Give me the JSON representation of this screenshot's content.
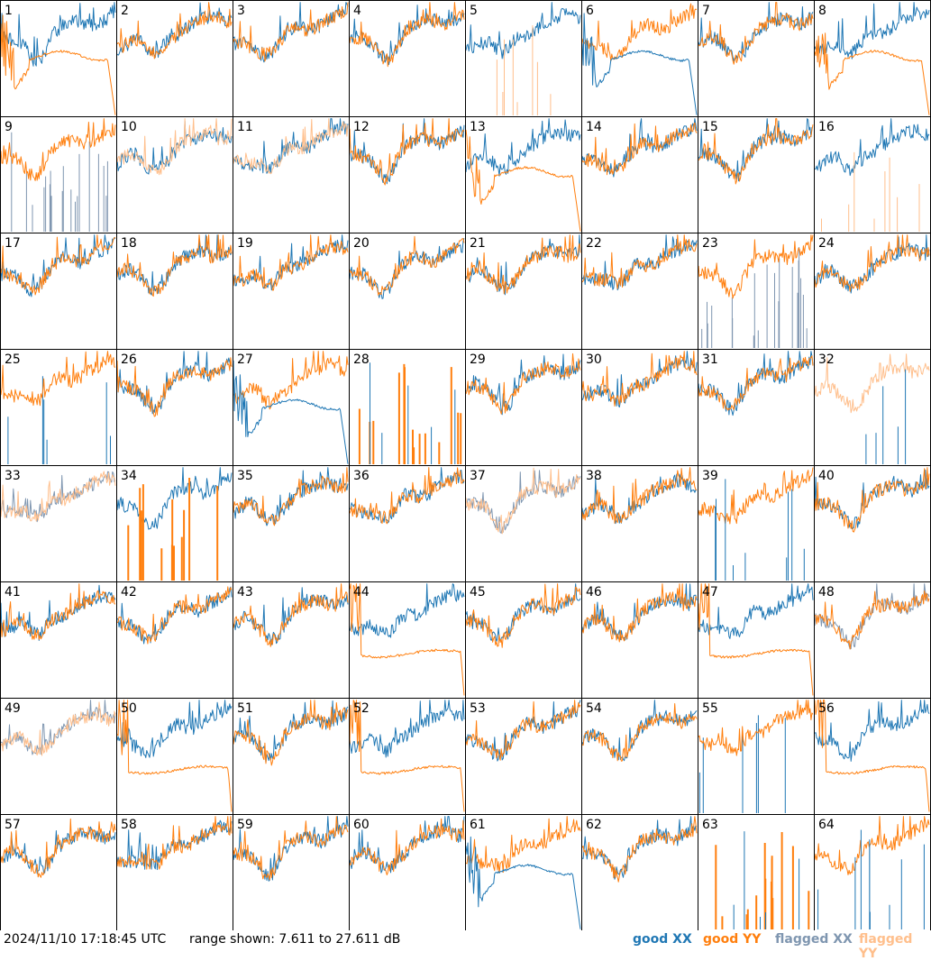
{
  "chart_data": {
    "type": "line",
    "layout": "8x8 grid of small multiples",
    "panels": [
      "1",
      "2",
      "3",
      "4",
      "5",
      "6",
      "7",
      "8",
      "9",
      "10",
      "11",
      "12",
      "13",
      "14",
      "15",
      "16",
      "17",
      "18",
      "19",
      "20",
      "21",
      "22",
      "23",
      "24",
      "25",
      "26",
      "27",
      "28",
      "29",
      "30",
      "31",
      "32",
      "33",
      "34",
      "35",
      "36",
      "37",
      "38",
      "39",
      "40",
      "41",
      "42",
      "43",
      "44",
      "45",
      "46",
      "47",
      "48",
      "49",
      "50",
      "51",
      "52",
      "53",
      "54",
      "55",
      "56",
      "57",
      "58",
      "59",
      "60",
      "61",
      "62",
      "63",
      "64"
    ],
    "ylim": [
      7.611,
      27.611
    ],
    "y_unit": "dB",
    "series": [
      {
        "name": "good XX",
        "color": "#1f77b4"
      },
      {
        "name": "good YY",
        "color": "#ff7f0e"
      },
      {
        "name": "flagged XX",
        "color": "#7f96b0"
      },
      {
        "name": "flagged YY",
        "color": "#ffbf8c"
      }
    ],
    "panel_styles": {
      "normal": [],
      "yy_dipped": [
        "1",
        "8",
        "13"
      ],
      "xx_dipped": [
        "6",
        "27",
        "61"
      ],
      "yy_flat_lowered": [
        "44",
        "47"
      ],
      "yy_spiky": [
        "5",
        "16"
      ],
      "xx_spiky": [
        "39",
        "64"
      ],
      "both_spiky": [
        "28",
        "63"
      ],
      "yy_spike_bars_xx_normal": [
        "34"
      ],
      "flagged_xx_bars_yy_normal": [
        "9",
        "23"
      ],
      "flagged_yy_xx_normal": [
        "10",
        "11"
      ],
      "flagged_both": [
        "33",
        "37",
        "49"
      ],
      "flagged_yy_xx_spiky": [
        "32"
      ],
      "flagged_xx_yy_normal": [
        "48"
      ],
      "xx_bars_yy_normal": [
        "25",
        "55"
      ],
      "mixed_flat": [
        "52",
        "56",
        "50"
      ]
    },
    "grid": false,
    "legend": "bottom-right"
  },
  "footer": {
    "timestamp": "2024/11/10 17:18:45 UTC",
    "range": "range shown: 7.611 to 27.611 dB",
    "legend": {
      "good_xx": "good XX",
      "good_yy": "good YY",
      "flagged_xx": "flagged XX",
      "flagged_yy": "flagged YY"
    }
  }
}
